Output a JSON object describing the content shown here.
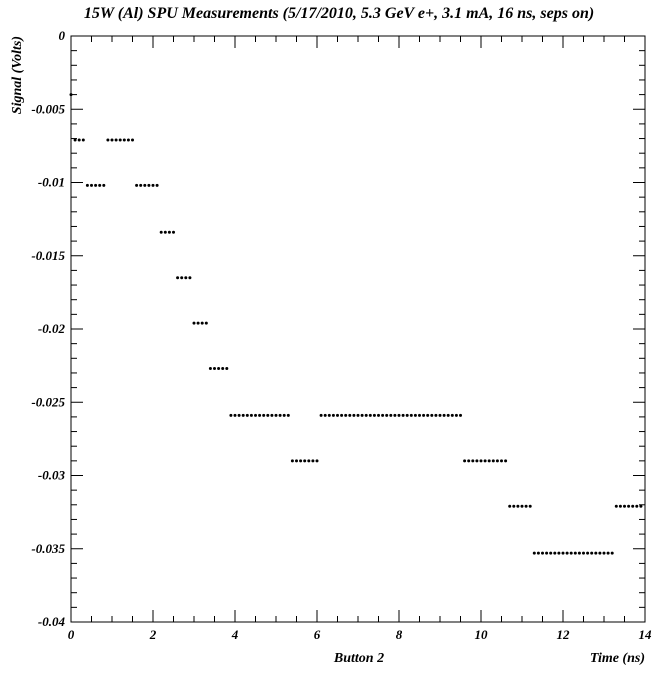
{
  "chart_data": {
    "type": "scatter",
    "title": "15W (Al) SPU Measurements (5/17/2010, 5.3 GeV e+, 3.1 mA, 16 ns, seps on)",
    "xlabel": "Time (ns)",
    "ylabel": "Signal (Volts)",
    "sublabel": "Button 2",
    "xlim": [
      0,
      14
    ],
    "ylim": [
      -0.04,
      0
    ],
    "x_ticks": [
      "0",
      "2",
      "4",
      "6",
      "8",
      "10",
      "12",
      "14"
    ],
    "y_ticks": [
      "0",
      "-0.005",
      "-0.01",
      "-0.015",
      "-0.02",
      "-0.025",
      "-0.03",
      "-0.035",
      "-0.04"
    ],
    "grid": false,
    "x_step": 0.1,
    "segments": [
      {
        "x_start": 0.0,
        "count": 1,
        "y": -0.004
      },
      {
        "x_start": 0.1,
        "count": 3,
        "y": -0.0071
      },
      {
        "x_start": 0.4,
        "count": 5,
        "y": -0.0102
      },
      {
        "x_start": 0.9,
        "count": 7,
        "y": -0.0071
      },
      {
        "x_start": 1.6,
        "count": 6,
        "y": -0.0102
      },
      {
        "x_start": 2.2,
        "count": 4,
        "y": -0.0134
      },
      {
        "x_start": 2.6,
        "count": 4,
        "y": -0.0165
      },
      {
        "x_start": 3.0,
        "count": 4,
        "y": -0.0196
      },
      {
        "x_start": 3.4,
        "count": 5,
        "y": -0.0227
      },
      {
        "x_start": 3.9,
        "count": 15,
        "y": -0.0259
      },
      {
        "x_start": 5.4,
        "count": 7,
        "y": -0.029
      },
      {
        "x_start": 6.1,
        "count": 35,
        "y": -0.0259
      },
      {
        "x_start": 9.6,
        "count": 11,
        "y": -0.029
      },
      {
        "x_start": 10.7,
        "count": 6,
        "y": -0.0321
      },
      {
        "x_start": 11.3,
        "count": 20,
        "y": -0.0353
      },
      {
        "x_start": 13.3,
        "count": 7,
        "y": -0.0321
      }
    ]
  }
}
